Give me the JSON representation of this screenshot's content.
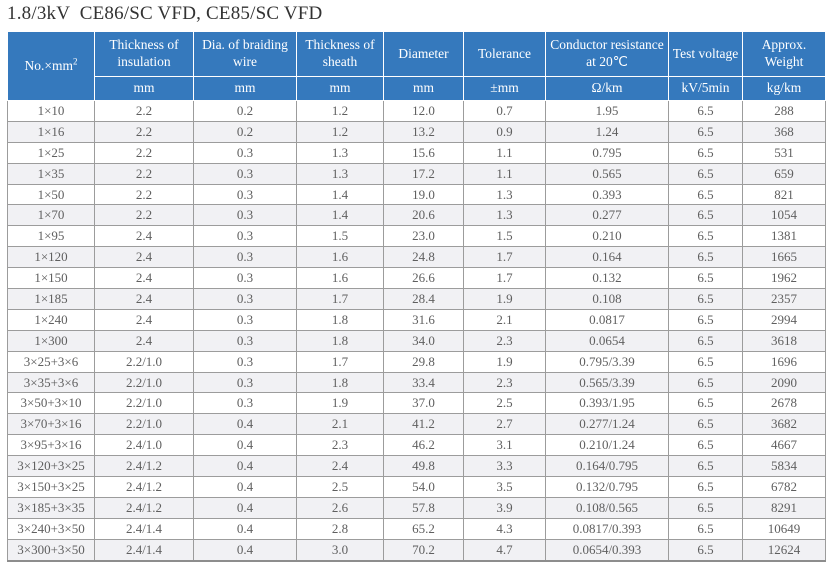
{
  "title": "1.8/3kV  CE86/SC VFD, CE85/SC VFD",
  "colors": {
    "header_bg": "#3579bd",
    "header_text": "#ffffff",
    "row_stripe": "#f1f1f4",
    "grid_line": "#9c9c9c",
    "body_text": "#5f5f5f",
    "title_text": "#333333"
  },
  "table": {
    "columns": [
      {
        "label": "No.×mm",
        "sup": "2",
        "unit": null
      },
      {
        "label": "Thickness of insulation",
        "unit": "mm"
      },
      {
        "label": "Dia. of braiding wire",
        "unit": "mm"
      },
      {
        "label": "Thickness of sheath",
        "unit": "mm"
      },
      {
        "label": "Diameter",
        "unit": "mm"
      },
      {
        "label": "Tolerance",
        "unit": "±mm"
      },
      {
        "label": "Conductor resistance at 20℃",
        "unit": "Ω/km"
      },
      {
        "label": "Test voltage",
        "unit": "kV/5min"
      },
      {
        "label": "Approx. Weight",
        "unit": "kg/km"
      }
    ],
    "rows": [
      [
        "1×10",
        "2.2",
        "0.2",
        "1.2",
        "12.0",
        "0.7",
        "1.95",
        "6.5",
        "288"
      ],
      [
        "1×16",
        "2.2",
        "0.2",
        "1.2",
        "13.2",
        "0.9",
        "1.24",
        "6.5",
        "368"
      ],
      [
        "1×25",
        "2.2",
        "0.3",
        "1.3",
        "15.6",
        "1.1",
        "0.795",
        "6.5",
        "531"
      ],
      [
        "1×35",
        "2.2",
        "0.3",
        "1.3",
        "17.2",
        "1.1",
        "0.565",
        "6.5",
        "659"
      ],
      [
        "1×50",
        "2.2",
        "0.3",
        "1.4",
        "19.0",
        "1.3",
        "0.393",
        "6.5",
        "821"
      ],
      [
        "1×70",
        "2.2",
        "0.3",
        "1.4",
        "20.6",
        "1.3",
        "0.277",
        "6.5",
        "1054"
      ],
      [
        "1×95",
        "2.4",
        "0.3",
        "1.5",
        "23.0",
        "1.5",
        "0.210",
        "6.5",
        "1381"
      ],
      [
        "1×120",
        "2.4",
        "0.3",
        "1.6",
        "24.8",
        "1.7",
        "0.164",
        "6.5",
        "1665"
      ],
      [
        "1×150",
        "2.4",
        "0.3",
        "1.6",
        "26.6",
        "1.7",
        "0.132",
        "6.5",
        "1962"
      ],
      [
        "1×185",
        "2.4",
        "0.3",
        "1.7",
        "28.4",
        "1.9",
        "0.108",
        "6.5",
        "2357"
      ],
      [
        "1×240",
        "2.4",
        "0.3",
        "1.8",
        "31.6",
        "2.1",
        "0.0817",
        "6.5",
        "2994"
      ],
      [
        "1×300",
        "2.4",
        "0.3",
        "1.8",
        "34.0",
        "2.3",
        "0.0654",
        "6.5",
        "3618"
      ],
      [
        "3×25+3×6",
        "2.2/1.0",
        "0.3",
        "1.7",
        "29.8",
        "1.9",
        "0.795/3.39",
        "6.5",
        "1696"
      ],
      [
        "3×35+3×6",
        "2.2/1.0",
        "0.3",
        "1.8",
        "33.4",
        "2.3",
        "0.565/3.39",
        "6.5",
        "2090"
      ],
      [
        "3×50+3×10",
        "2.2/1.0",
        "0.3",
        "1.9",
        "37.0",
        "2.5",
        "0.393/1.95",
        "6.5",
        "2678"
      ],
      [
        "3×70+3×16",
        "2.2/1.0",
        "0.4",
        "2.1",
        "41.2",
        "2.7",
        "0.277/1.24",
        "6.5",
        "3682"
      ],
      [
        "3×95+3×16",
        "2.4/1.0",
        "0.4",
        "2.3",
        "46.2",
        "3.1",
        "0.210/1.24",
        "6.5",
        "4667"
      ],
      [
        "3×120+3×25",
        "2.4/1.2",
        "0.4",
        "2.4",
        "49.8",
        "3.3",
        "0.164/0.795",
        "6.5",
        "5834"
      ],
      [
        "3×150+3×25",
        "2.4/1.2",
        "0.4",
        "2.5",
        "54.0",
        "3.5",
        "0.132/0.795",
        "6.5",
        "6782"
      ],
      [
        "3×185+3×35",
        "2.4/1.2",
        "0.4",
        "2.6",
        "57.8",
        "3.9",
        "0.108/0.565",
        "6.5",
        "8291"
      ],
      [
        "3×240+3×50",
        "2.4/1.4",
        "0.4",
        "2.8",
        "65.2",
        "4.3",
        "0.0817/0.393",
        "6.5",
        "10649"
      ],
      [
        "3×300+3×50",
        "2.4/1.4",
        "0.4",
        "3.0",
        "70.2",
        "4.7",
        "0.0654/0.393",
        "6.5",
        "12624"
      ]
    ]
  }
}
